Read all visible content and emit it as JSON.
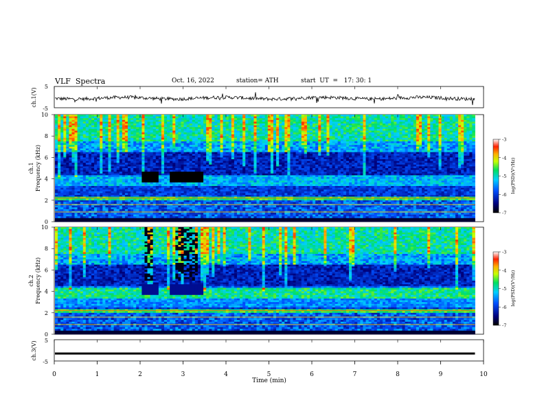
{
  "header": {
    "title": "VLF  Spectra",
    "date": "Oct. 16, 2022",
    "station": "station= ATH",
    "start": "start  UT  =   17: 30: 1"
  },
  "chart_data": [
    {
      "type": "line",
      "panel": "ch1-waveform",
      "ylabel": "ch.1(V)",
      "ylim": [
        -5,
        5
      ],
      "yticks": [
        "5",
        "-5"
      ],
      "series": [
        {
          "values_description_level": -0.5,
          "noise": true
        }
      ]
    },
    {
      "type": "heatmap",
      "panel": "ch1-spectrogram",
      "ylabel": "ch.1\nFrequency  (kHz)",
      "ylabel_lines": [
        "ch.1",
        "Frequency  (kHz)"
      ],
      "ylim": [
        0,
        10
      ],
      "yticks": [
        "0",
        "2",
        "4",
        "6",
        "8",
        "10"
      ],
      "xlim": [
        0,
        10
      ],
      "colorbar": {
        "label": "log(PSD)(V²/Hz)",
        "range": [
          -7,
          -3
        ],
        "ticks": [
          "-3",
          "-4",
          "-5",
          "-6",
          "-7"
        ]
      }
    },
    {
      "type": "heatmap",
      "panel": "ch2-spectrogram",
      "ylabel_lines": [
        "ch.2",
        "Frequency  (kHz)"
      ],
      "ylim": [
        0,
        10
      ],
      "yticks": [
        "0",
        "2",
        "4",
        "6",
        "8",
        "10"
      ],
      "xlim": [
        0,
        10
      ],
      "colorbar": {
        "label": "log(PSD)(V²/Hz)",
        "range": [
          -7,
          -3
        ],
        "ticks": [
          "-3",
          "-4",
          "-5",
          "-6",
          "-7"
        ]
      }
    },
    {
      "type": "line",
      "panel": "ch3-waveform",
      "ylabel": "ch.3(V)",
      "ylim": [
        -5,
        5
      ],
      "yticks": [
        "5",
        "-5"
      ],
      "series": [
        {
          "values_description_level": -1.5,
          "noise": false
        }
      ]
    }
  ],
  "xaxis": {
    "label": "Time  (min)",
    "ticks": [
      "0",
      "1",
      "2",
      "3",
      "4",
      "5",
      "6",
      "7",
      "8",
      "9",
      "10"
    ],
    "range": [
      0,
      10
    ],
    "data_end": 9.8
  }
}
